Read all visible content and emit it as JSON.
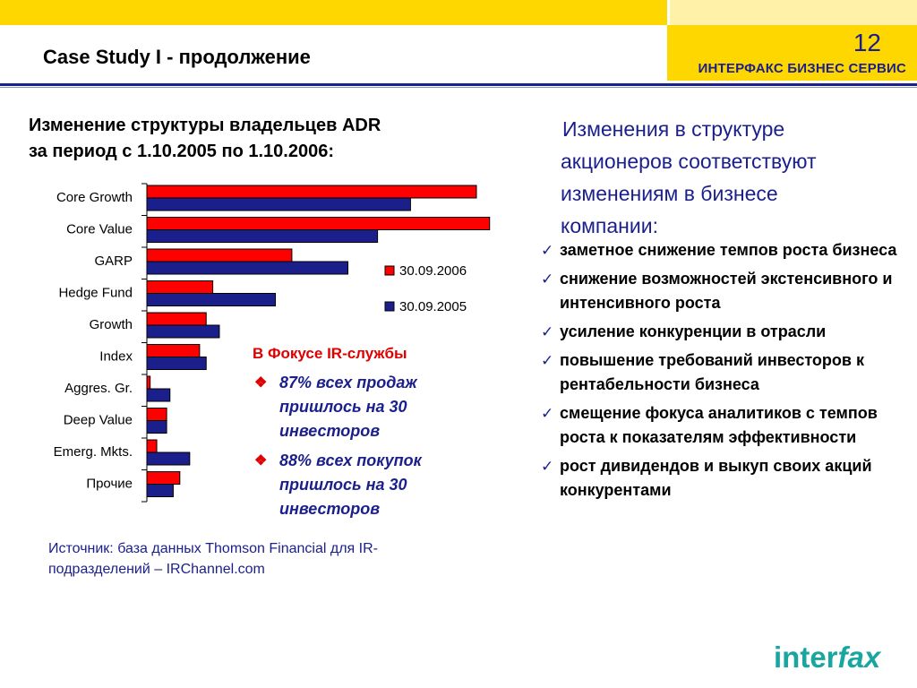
{
  "header": {
    "title": "Case Study I - продолжение",
    "page_number": "12",
    "company": "ИНТЕРФАКС БИЗНЕС СЕРВИС"
  },
  "chart_heading": {
    "line1": "Изменение структуры владельцев ADR",
    "line2": "за период с 1.10.2005 по 1.10.2006:"
  },
  "chart_data": {
    "type": "bar",
    "orientation": "horizontal",
    "categories": [
      "Core Growth",
      "Core Value",
      "GARP",
      "Hedge Fund",
      "Growth",
      "Index",
      "Aggres. Gr.",
      "Deep Value",
      "Emerg. Mkts.",
      "Прочие"
    ],
    "series": [
      {
        "name": "30.09.2006",
        "color": "#ff0000",
        "values": [
          100,
          104,
          44,
          20,
          18,
          16,
          1,
          6,
          3,
          10
        ]
      },
      {
        "name": "30.09.2005",
        "color": "#1b1f8c",
        "values": [
          80,
          70,
          61,
          39,
          22,
          18,
          7,
          6,
          13,
          8
        ]
      }
    ],
    "legend_position": "right",
    "grid": false
  },
  "focus": {
    "title": "В Фокусе IR-службы",
    "bullet_symbol": "❖",
    "items": [
      "87% всех продаж пришлось на 30 инвесторов",
      "88% всех покупок пришлось на 30 инвесторов"
    ]
  },
  "source": {
    "line1": "Источник: база данных Thomson Financial для IR-",
    "line2": "подразделений – IRChannel.com"
  },
  "right": {
    "intro_lines": [
      "Изменения в структуре",
      "акционеров соответствуют",
      "изменениям в бизнесе",
      "компании:"
    ],
    "check_symbol": "✓",
    "items": [
      "заметное снижение темпов роста бизнеса",
      "снижение возможностей экстенсивного и интенсивного роста",
      "усиление конкуренции в отрасли",
      "повышение требований инвесторов к рентабельности бизнеса",
      "смещение фокуса аналитиков с темпов роста к показателям эффективности",
      "рост дивидендов и выкуп своих акций конкурентами"
    ]
  },
  "logo": {
    "text_inter": "inter",
    "text_fax": "fax",
    "color": "#1aa6a0"
  }
}
